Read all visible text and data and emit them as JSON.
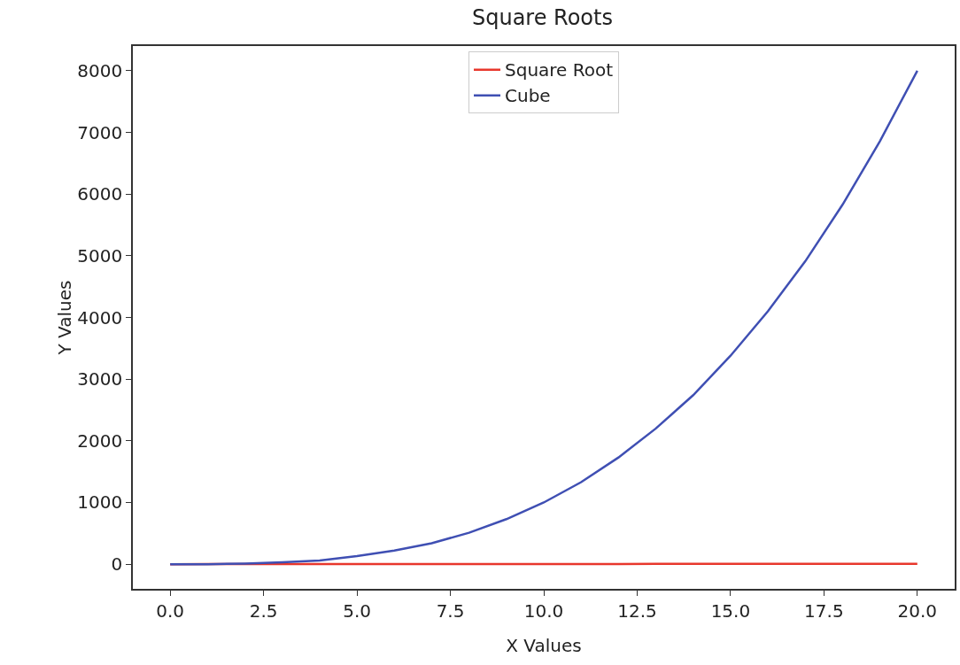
{
  "chart_data": {
    "type": "line",
    "title": "Square Roots",
    "xlabel": "X Values",
    "ylabel": "Y Values",
    "x": [
      0,
      1,
      2,
      3,
      4,
      5,
      6,
      7,
      8,
      9,
      10,
      11,
      12,
      13,
      14,
      15,
      16,
      17,
      18,
      19,
      20
    ],
    "series": [
      {
        "name": "Square Root",
        "color": "#e8372c",
        "values": [
          0,
          1,
          1,
          2,
          2,
          2,
          2,
          3,
          3,
          3,
          3,
          3,
          3,
          4,
          4,
          4,
          4,
          4,
          4,
          4,
          4
        ]
      },
      {
        "name": "Cube",
        "color": "#3f4fb3",
        "values": [
          0,
          0,
          10,
          30,
          60,
          130,
          220,
          340,
          510,
          730,
          1000,
          1330,
          1730,
          2200,
          2740,
          3380,
          4100,
          4910,
          5830,
          6860,
          8000
        ]
      }
    ],
    "xlim": [
      -1,
      21
    ],
    "xticks": [
      {
        "value": 0,
        "label": "0.0"
      },
      {
        "value": 2.5,
        "label": "2.5"
      },
      {
        "value": 5,
        "label": "5.0"
      },
      {
        "value": 7.5,
        "label": "7.5"
      },
      {
        "value": 10,
        "label": "10.0"
      },
      {
        "value": 12.5,
        "label": "12.5"
      },
      {
        "value": 15,
        "label": "15.0"
      },
      {
        "value": 17.5,
        "label": "17.5"
      },
      {
        "value": 20,
        "label": "20.0"
      }
    ],
    "ylim": [
      -400,
      8400
    ],
    "yticks": [
      0,
      1000,
      2000,
      3000,
      4000,
      5000,
      6000,
      7000,
      8000
    ],
    "grid": false,
    "legend": "top",
    "marker": "none",
    "line_style": "solid"
  }
}
